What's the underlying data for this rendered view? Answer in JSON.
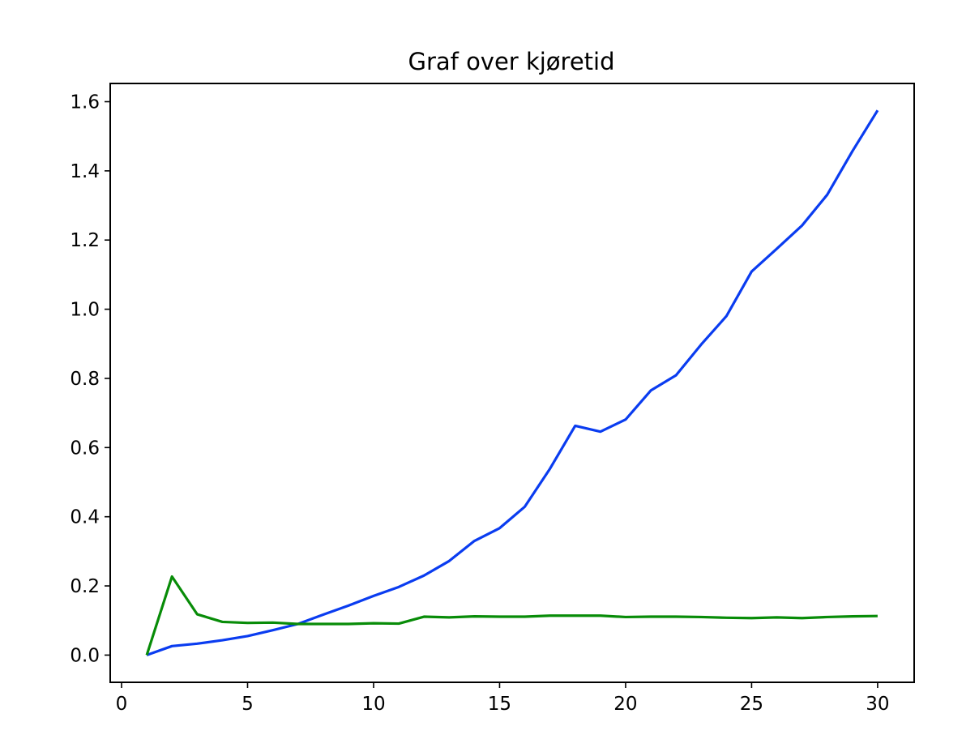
{
  "chart_data": {
    "type": "line",
    "title": "Graf over kjøretid",
    "xlabel": "",
    "ylabel": "",
    "xlim": [
      -0.45,
      31.45
    ],
    "ylim": [
      -0.0787,
      1.6527
    ],
    "x_ticks": [
      0,
      5,
      10,
      15,
      20,
      25,
      30
    ],
    "x_tick_labels": [
      "0",
      "5",
      "10",
      "15",
      "20",
      "25",
      "30"
    ],
    "y_ticks": [
      0.0,
      0.2,
      0.4,
      0.6,
      0.8,
      1.0,
      1.2,
      1.4,
      1.6
    ],
    "y_tick_labels": [
      "0.0",
      "0.2",
      "0.4",
      "0.6",
      "0.8",
      "1.0",
      "1.2",
      "1.4",
      "1.6"
    ],
    "grid": false,
    "x": [
      1,
      2,
      3,
      4,
      5,
      6,
      7,
      8,
      9,
      10,
      11,
      12,
      13,
      14,
      15,
      16,
      17,
      18,
      19,
      20,
      21,
      22,
      23,
      24,
      25,
      26,
      27,
      28,
      29,
      30
    ],
    "series": [
      {
        "color": "#0a3cf0",
        "values": [
          0.0,
          0.026,
          0.033,
          0.043,
          0.055,
          0.072,
          0.09,
          0.117,
          0.143,
          0.171,
          0.197,
          0.23,
          0.272,
          0.33,
          0.367,
          0.429,
          0.539,
          0.663,
          0.646,
          0.681,
          0.765,
          0.809,
          0.898,
          0.98,
          1.109,
          1.175,
          1.242,
          1.331,
          1.457,
          1.575
        ]
      },
      {
        "color": "#088c08",
        "values": [
          0.0,
          0.227,
          0.118,
          0.096,
          0.093,
          0.094,
          0.09,
          0.09,
          0.09,
          0.092,
          0.091,
          0.111,
          0.109,
          0.112,
          0.111,
          0.111,
          0.114,
          0.114,
          0.114,
          0.11,
          0.111,
          0.111,
          0.11,
          0.108,
          0.107,
          0.109,
          0.107,
          0.11,
          0.112,
          0.113
        ]
      }
    ]
  }
}
